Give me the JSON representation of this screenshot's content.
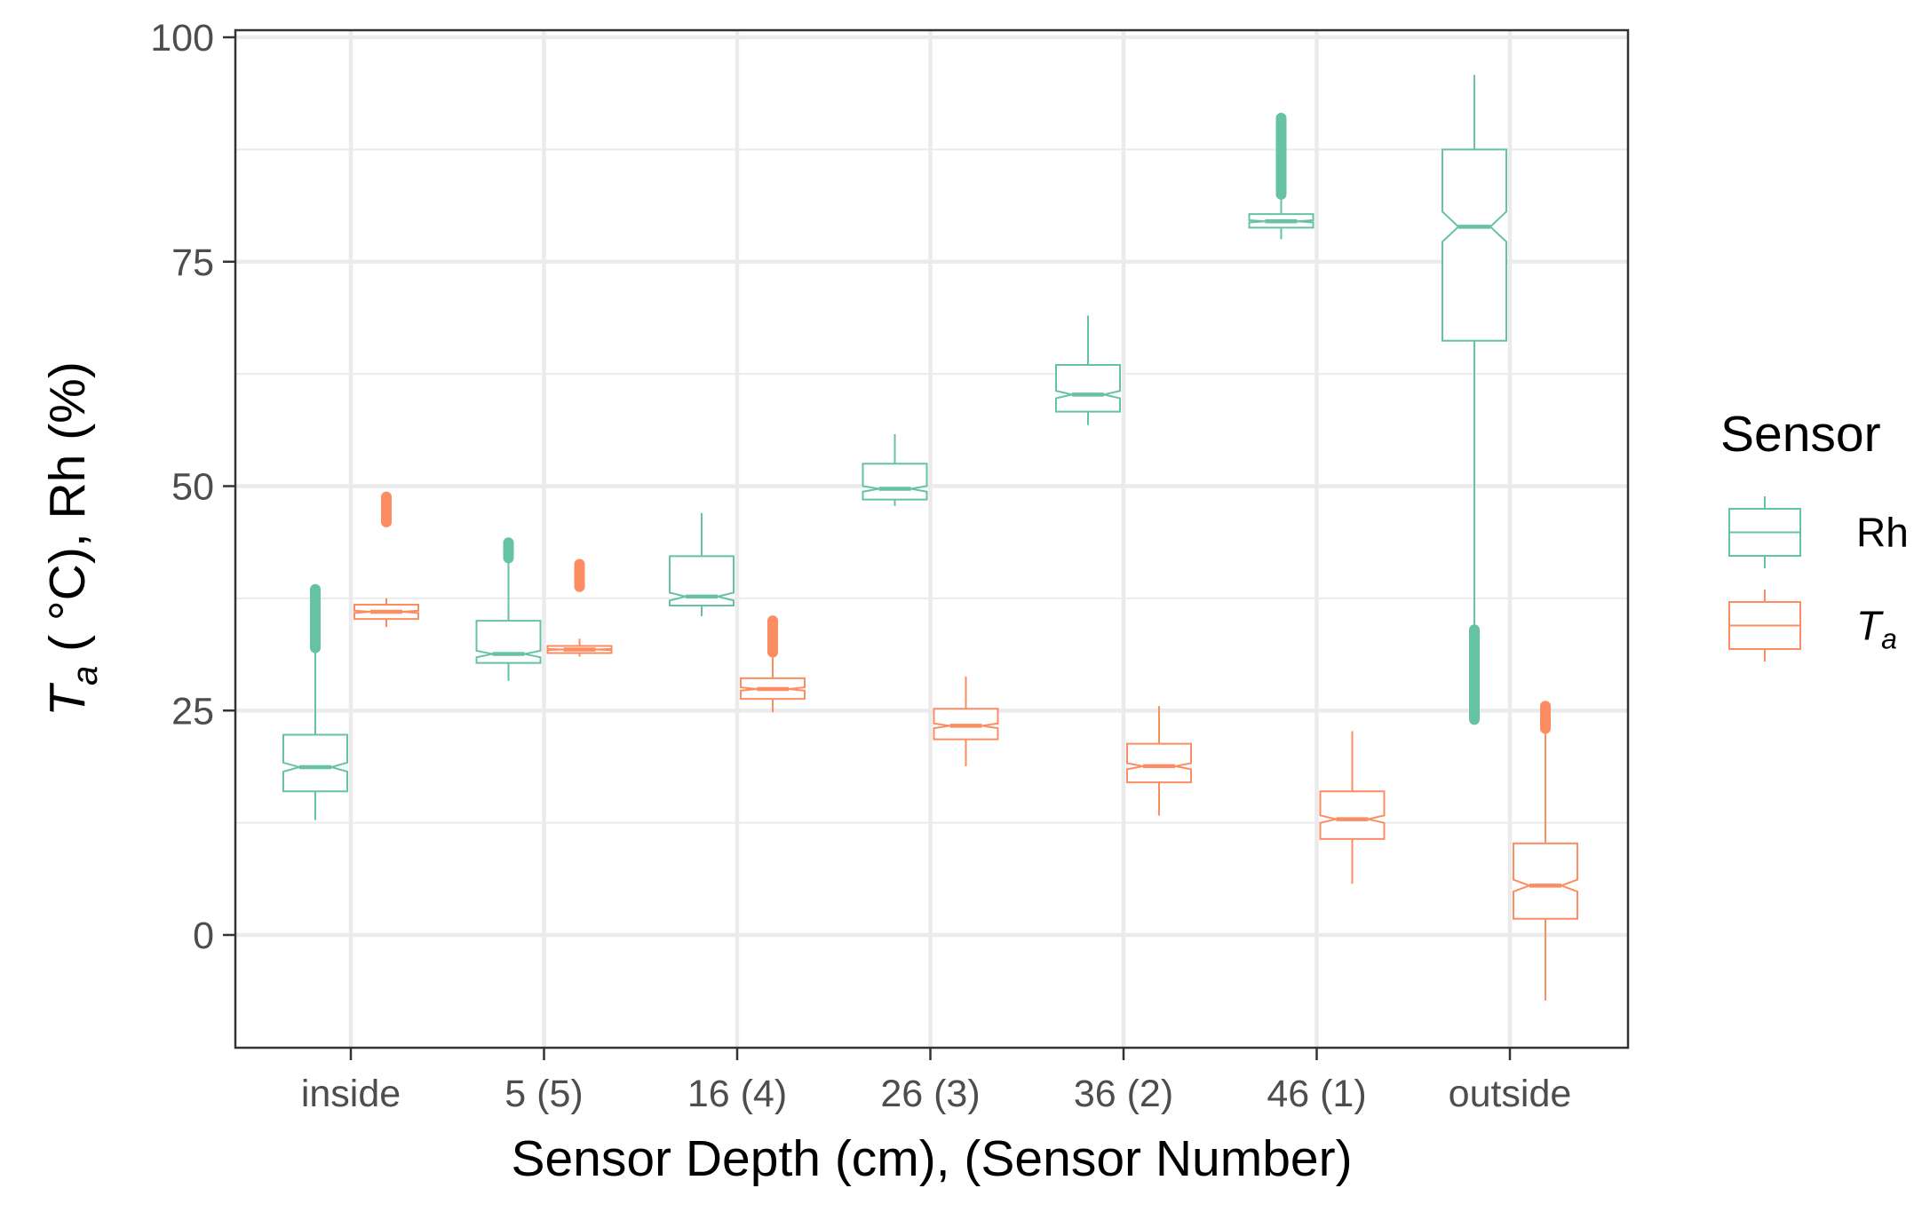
{
  "chart_data": {
    "type": "boxplot",
    "xlabel": "Sensor Depth (cm), (Sensor Number)",
    "ylabel_parts": {
      "t": "T",
      "sub": "a",
      "rest": " ( °C), Rh (%)"
    },
    "ylim": [
      -12,
      100
    ],
    "yticks": [
      0,
      25,
      50,
      75,
      100
    ],
    "yticklabels": [
      "0",
      "25",
      "50",
      "75",
      "100"
    ],
    "grid": true,
    "categories": [
      "inside",
      "5 (5)",
      "16 (4)",
      "26 (3)",
      "36 (2)",
      "46 (1)",
      "outside"
    ],
    "legend": {
      "title": "Sensor",
      "position": "right",
      "entries": [
        {
          "label": "Rh",
          "italic": false,
          "sub": ""
        },
        {
          "label": "T",
          "italic": true,
          "sub": "a"
        }
      ]
    },
    "colors": {
      "Rh": "#66c2a5",
      "Ta": "#fc8d62"
    },
    "series": [
      {
        "name": "Rh",
        "boxes": [
          {
            "whisker_low": 12.8,
            "q1": 16.0,
            "median": 18.7,
            "q3": 22.3,
            "whisker_high": 32.0,
            "outliers_low": null,
            "outliers_high": [
              32.0,
              38.5
            ]
          },
          {
            "whisker_low": 28.3,
            "q1": 30.3,
            "median": 31.3,
            "q3": 35.0,
            "whisker_high": 42.0,
            "outliers_low": null,
            "outliers_high": [
              42.0,
              43.7
            ]
          },
          {
            "whisker_low": 35.5,
            "q1": 36.7,
            "median": 37.7,
            "q3": 42.2,
            "whisker_high": 47.0,
            "outliers_low": null,
            "outliers_high": null
          },
          {
            "whisker_low": 47.8,
            "q1": 48.5,
            "median": 49.7,
            "q3": 52.5,
            "whisker_high": 55.8,
            "outliers_low": null,
            "outliers_high": null
          },
          {
            "whisker_low": 56.8,
            "q1": 58.3,
            "median": 60.2,
            "q3": 63.5,
            "whisker_high": 69.0,
            "outliers_low": null,
            "outliers_high": null
          },
          {
            "whisker_low": 77.5,
            "q1": 78.8,
            "median": 79.5,
            "q3": 80.3,
            "whisker_high": 82.5,
            "outliers_low": null,
            "outliers_high": [
              82.5,
              91.0
            ]
          },
          {
            "whisker_low": 34.0,
            "q1": 66.2,
            "median": 78.9,
            "q3": 87.5,
            "whisker_high": 95.8,
            "outliers_low": [
              24.0,
              34.0
            ],
            "outliers_high": null
          }
        ]
      },
      {
        "name": "Ta",
        "boxes": [
          {
            "whisker_low": 34.3,
            "q1": 35.2,
            "median": 36.0,
            "q3": 36.8,
            "whisker_high": 37.5,
            "outliers_low": null,
            "outliers_high": [
              46.0,
              48.8
            ]
          },
          {
            "whisker_low": 31.0,
            "q1": 31.4,
            "median": 31.8,
            "q3": 32.2,
            "whisker_high": 33.0,
            "outliers_low": null,
            "outliers_high": [
              38.8,
              41.3
            ]
          },
          {
            "whisker_low": 24.8,
            "q1": 26.3,
            "median": 27.4,
            "q3": 28.6,
            "whisker_high": 31.5,
            "outliers_low": null,
            "outliers_high": [
              31.5,
              35.0
            ]
          },
          {
            "whisker_low": 18.8,
            "q1": 21.8,
            "median": 23.3,
            "q3": 25.2,
            "whisker_high": 28.8,
            "outliers_low": null,
            "outliers_high": null
          },
          {
            "whisker_low": 13.3,
            "q1": 17.0,
            "median": 18.8,
            "q3": 21.3,
            "whisker_high": 25.5,
            "outliers_low": null,
            "outliers_high": null
          },
          {
            "whisker_low": 5.7,
            "q1": 10.7,
            "median": 12.9,
            "q3": 16.0,
            "whisker_high": 22.7,
            "outliers_low": null,
            "outliers_high": null
          },
          {
            "whisker_low": -7.3,
            "q1": 1.8,
            "median": 5.5,
            "q3": 10.2,
            "whisker_high": 23.0,
            "outliers_low": null,
            "outliers_high": [
              23.0,
              25.5
            ]
          }
        ]
      }
    ]
  }
}
